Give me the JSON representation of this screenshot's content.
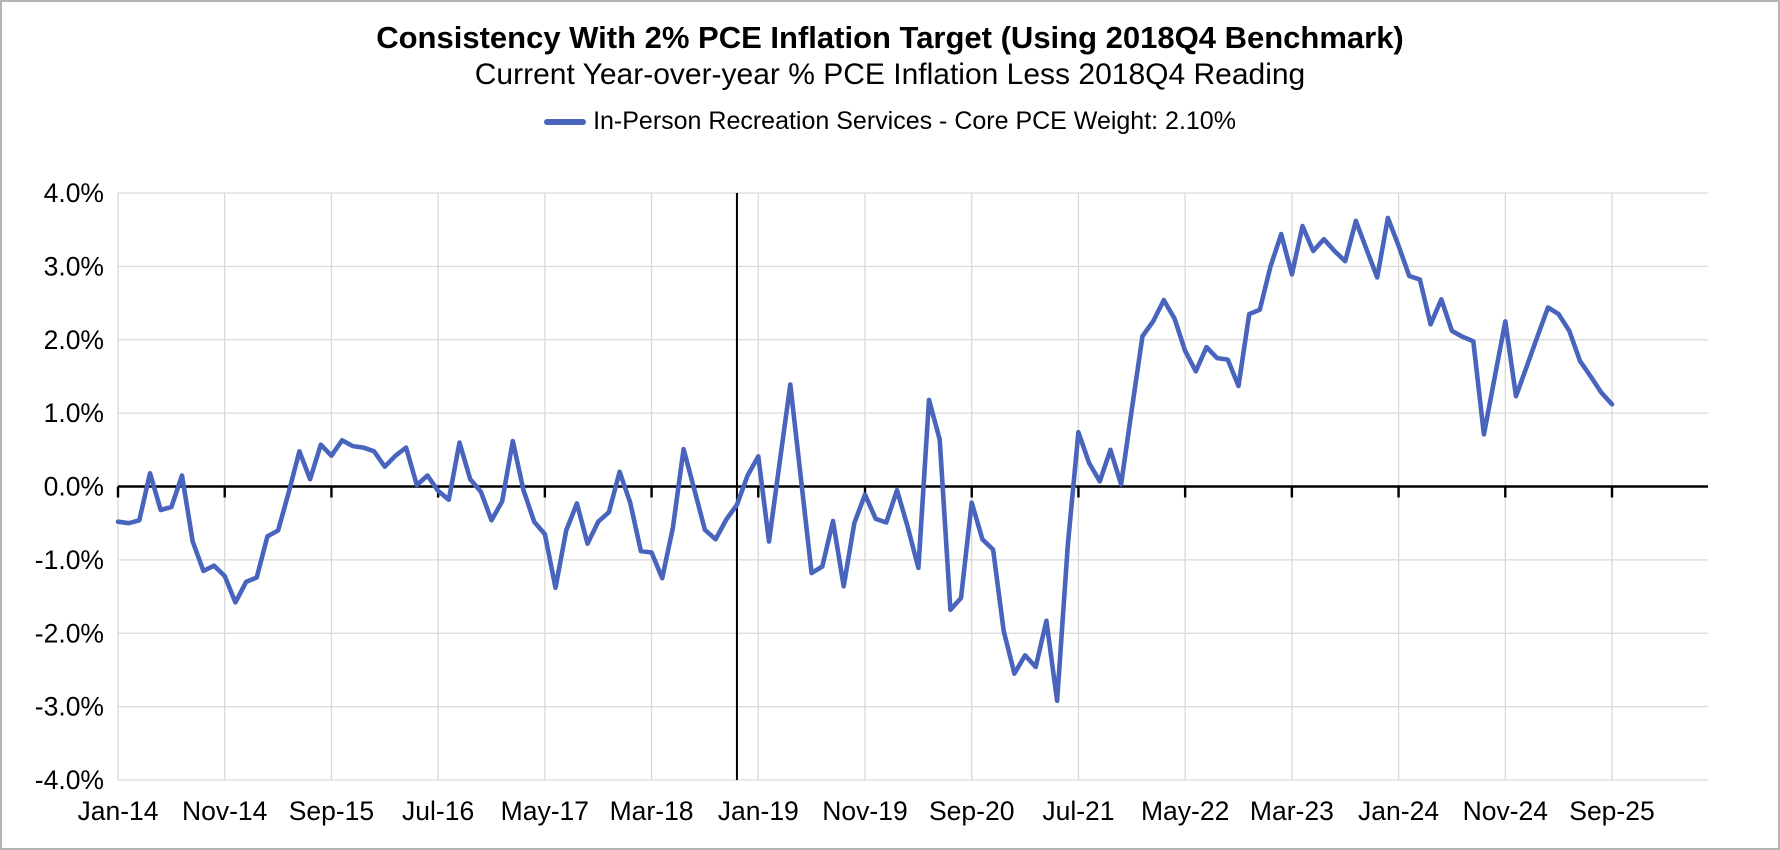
{
  "header": {
    "title": "Consistency With 2% PCE Inflation Target (Using 2018Q4 Benchmark)",
    "subtitle": "Current Year-over-year % PCE Inflation Less 2018Q4 Reading"
  },
  "legend": {
    "label": "In-Person Recreation Services - Core PCE Weight: 2.10%",
    "color": "#4864bc"
  },
  "chart_data": {
    "type": "line",
    "title": "Consistency With 2% PCE Inflation Target (Using 2018Q4 Benchmark)",
    "subtitle": "Current Year-over-year % PCE Inflation Less 2018Q4 Reading",
    "legend_position": "top",
    "grid": true,
    "ylim": [
      -4,
      4
    ],
    "y_tick_labels": [
      "4.0%",
      "3.0%",
      "2.0%",
      "1.0%",
      "0.0%",
      "-1.0%",
      "-2.0%",
      "-3.0%",
      "-4.0%"
    ],
    "x_tick_labels": [
      "Jan-14",
      "Nov-14",
      "Sep-15",
      "Jul-16",
      "May-17",
      "Mar-18",
      "Jan-19",
      "Nov-19",
      "Sep-20",
      "Jul-21",
      "May-22",
      "Mar-23",
      "Jan-24",
      "Nov-24",
      "Sep-25"
    ],
    "benchmark_vline_month": "Nov-18",
    "colors": {
      "line": "#4864bc",
      "grid": "#d9d9d9",
      "axis": "#000000"
    },
    "x": [
      "Jan-14",
      "Feb-14",
      "Mar-14",
      "Apr-14",
      "May-14",
      "Jun-14",
      "Jul-14",
      "Aug-14",
      "Sep-14",
      "Oct-14",
      "Nov-14",
      "Dec-14",
      "Jan-15",
      "Feb-15",
      "Mar-15",
      "Apr-15",
      "May-15",
      "Jun-15",
      "Jul-15",
      "Aug-15",
      "Sep-15",
      "Oct-15",
      "Nov-15",
      "Dec-15",
      "Jan-16",
      "Feb-16",
      "Mar-16",
      "Apr-16",
      "May-16",
      "Jun-16",
      "Jul-16",
      "Aug-16",
      "Sep-16",
      "Oct-16",
      "Nov-16",
      "Dec-16",
      "Jan-17",
      "Feb-17",
      "Mar-17",
      "Apr-17",
      "May-17",
      "Jun-17",
      "Jul-17",
      "Aug-17",
      "Sep-17",
      "Oct-17",
      "Nov-17",
      "Dec-17",
      "Jan-18",
      "Feb-18",
      "Mar-18",
      "Apr-18",
      "May-18",
      "Jun-18",
      "Jul-18",
      "Aug-18",
      "Sep-18",
      "Oct-18",
      "Nov-18",
      "Dec-18",
      "Jan-19",
      "Feb-19",
      "Mar-19",
      "Apr-19",
      "May-19",
      "Jun-19",
      "Jul-19",
      "Aug-19",
      "Sep-19",
      "Oct-19",
      "Nov-19",
      "Dec-19",
      "Jan-20",
      "Feb-20",
      "Mar-20",
      "Apr-20",
      "May-20",
      "Jun-20",
      "Jul-20",
      "Aug-20",
      "Sep-20",
      "Oct-20",
      "Nov-20",
      "Dec-20",
      "Jan-21",
      "Feb-21",
      "Mar-21",
      "Apr-21",
      "May-21",
      "Jun-21",
      "Jul-21",
      "Aug-21",
      "Sep-21",
      "Oct-21",
      "Nov-21",
      "Dec-21",
      "Jan-22",
      "Feb-22",
      "Mar-22",
      "Apr-22",
      "May-22",
      "Jun-22",
      "Jul-22",
      "Aug-22",
      "Sep-22",
      "Oct-22",
      "Nov-22",
      "Dec-22",
      "Jan-23",
      "Feb-23",
      "Mar-23",
      "Apr-23",
      "May-23",
      "Jun-23",
      "Jul-23",
      "Aug-23",
      "Sep-23",
      "Oct-23",
      "Nov-23",
      "Dec-23",
      "Jan-24",
      "Feb-24",
      "Mar-24",
      "Apr-24",
      "May-24",
      "Jun-24",
      "Jul-24",
      "Aug-24",
      "Sep-24",
      "Oct-24",
      "Nov-24",
      "Dec-24",
      "Jan-25",
      "Feb-25",
      "Mar-25",
      "Apr-25",
      "May-25",
      "Jun-25",
      "Jul-25",
      "Aug-25",
      "Sep-25"
    ],
    "series": [
      {
        "name": "In-Person Recreation Services - Core PCE Weight: 2.10%",
        "color": "#4864bc",
        "values": [
          -0.48,
          -0.5,
          -0.46,
          0.18,
          -0.32,
          -0.28,
          0.15,
          -0.75,
          -1.15,
          -1.08,
          -1.22,
          -1.58,
          -1.3,
          -1.24,
          -0.68,
          -0.6,
          -0.08,
          0.48,
          0.1,
          0.57,
          0.42,
          0.63,
          0.55,
          0.53,
          0.48,
          0.27,
          0.42,
          0.53,
          0.02,
          0.15,
          -0.06,
          -0.18,
          0.6,
          0.1,
          -0.07,
          -0.46,
          -0.2,
          0.62,
          -0.05,
          -0.48,
          -0.65,
          -1.38,
          -0.6,
          -0.23,
          -0.78,
          -0.48,
          -0.35,
          0.2,
          -0.22,
          -0.88,
          -0.9,
          -1.25,
          -0.56,
          0.51,
          -0.04,
          -0.59,
          -0.72,
          -0.45,
          -0.25,
          0.15,
          0.41,
          -0.75,
          0.32,
          1.39,
          0.1,
          -1.18,
          -1.09,
          -0.47,
          -1.36,
          -0.5,
          -0.11,
          -0.44,
          -0.49,
          -0.05,
          -0.55,
          -1.11,
          1.18,
          0.64,
          -1.68,
          -1.52,
          -0.22,
          -0.72,
          -0.86,
          -1.97,
          -2.55,
          -2.3,
          -2.46,
          -1.83,
          -2.92,
          -0.8,
          0.74,
          0.32,
          0.07,
          0.5,
          0.03,
          1.05,
          2.05,
          2.25,
          2.54,
          2.29,
          1.85,
          1.57,
          1.9,
          1.75,
          1.73,
          1.37,
          2.35,
          2.41,
          3.0,
          3.44,
          2.89,
          3.55,
          3.21,
          3.37,
          3.21,
          3.07,
          3.62,
          3.23,
          2.85,
          3.66,
          3.28,
          2.87,
          2.82,
          2.21,
          2.55,
          2.12,
          2.04,
          1.98,
          0.71,
          1.48,
          2.25,
          1.23,
          1.63,
          2.04,
          2.44,
          2.35,
          2.12,
          1.71,
          1.5,
          1.28,
          1.12
        ]
      }
    ]
  }
}
